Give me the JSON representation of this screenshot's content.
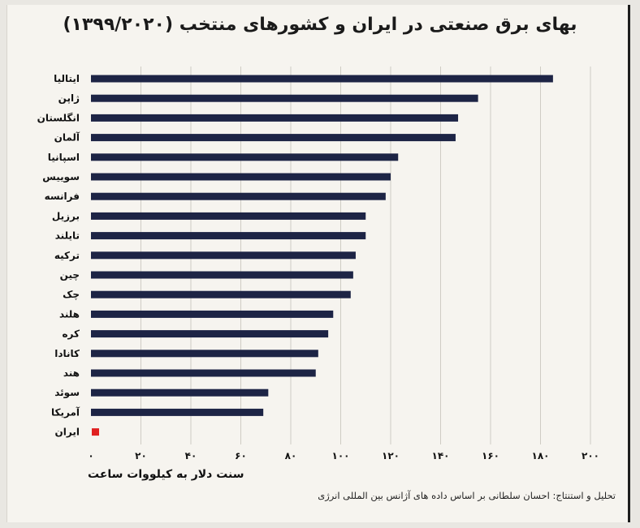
{
  "chart_data": {
    "type": "bar",
    "orientation": "horizontal",
    "title": "بهای برق صنعتی در ایران و کشورهای منتخب (۱۳۹۹/۲۰۲۰)",
    "xlabel": "سنت دلار به کیلووات ساعت",
    "ylabel": "",
    "xlim": [
      0,
      200
    ],
    "xticks": [
      0,
      20,
      40,
      60,
      80,
      100,
      120,
      140,
      160,
      180,
      200
    ],
    "xtick_labels": [
      "۰",
      "۲۰",
      "۴۰",
      "۶۰",
      "۸۰",
      "۱۰۰",
      "۱۲۰",
      "۱۴۰",
      "۱۶۰",
      "۱۸۰",
      "۲۰۰"
    ],
    "grid": true,
    "categories": [
      "ایتالیا",
      "ژاپن",
      "انگلستان",
      "آلمان",
      "اسپانیا",
      "سوییس",
      "فرانسه",
      "برزیل",
      "تایلند",
      "ترکیه",
      "چین",
      "چک",
      "هلند",
      "کره",
      "کانادا",
      "هند",
      "سوئد",
      "آمریکا",
      "ایران"
    ],
    "values": [
      185,
      155,
      147,
      146,
      123,
      120,
      118,
      110,
      110,
      106,
      105,
      104,
      97,
      95,
      91,
      90,
      71,
      69,
      3
    ],
    "colors": {
      "bar": "#1d2445",
      "highlight": "#e02020"
    },
    "highlight_category": "ایران"
  },
  "source": "تحلیل و استنتاج: احسان سلطانی بر اساس داده های آژانس بین المللی انرژی"
}
